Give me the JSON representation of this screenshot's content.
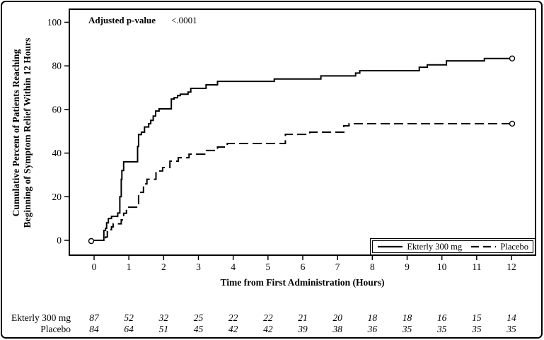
{
  "chart_data": {
    "type": "line",
    "subtype": "kaplan-meier-step",
    "title": "",
    "xlabel": "Time from First Administration (Hours)",
    "ylabel_line1": "Cumulative Percent of Patients Reaching",
    "ylabel_line2": "Beginning of Symptom Relief Within 12 Hours",
    "xlim": [
      0,
      12
    ],
    "ylim": [
      0,
      100
    ],
    "x_ticks": [
      0,
      1,
      2,
      3,
      4,
      5,
      6,
      7,
      8,
      9,
      10,
      11,
      12
    ],
    "y_ticks": [
      0,
      20,
      40,
      60,
      80,
      100
    ],
    "grid": "off",
    "annotation": {
      "label": "Adjusted p-value",
      "value": "<.0001"
    },
    "legend": {
      "position": "bottom-right-inside",
      "entries": [
        {
          "label": "Ekterly 300 mg",
          "style": "solid"
        },
        {
          "label": "Placebo",
          "style": "dashed"
        }
      ]
    },
    "series": [
      {
        "name": "Ekterly 300 mg",
        "style": "solid",
        "color": "#000000",
        "endpoint_marker": "open-circle",
        "end_value": 83.4,
        "points": [
          [
            0,
            0
          ],
          [
            0.28,
            0
          ],
          [
            0.28,
            4.5
          ],
          [
            0.33,
            4.5
          ],
          [
            0.33,
            5.5
          ],
          [
            0.36,
            5.5
          ],
          [
            0.36,
            8
          ],
          [
            0.41,
            8
          ],
          [
            0.41,
            10
          ],
          [
            0.5,
            10
          ],
          [
            0.5,
            11
          ],
          [
            0.68,
            11
          ],
          [
            0.68,
            12.5
          ],
          [
            0.74,
            12.5
          ],
          [
            0.74,
            20
          ],
          [
            0.78,
            20
          ],
          [
            0.78,
            28
          ],
          [
            0.8,
            28
          ],
          [
            0.8,
            32
          ],
          [
            0.85,
            32
          ],
          [
            0.85,
            36
          ],
          [
            1.25,
            36
          ],
          [
            1.25,
            43
          ],
          [
            1.28,
            43
          ],
          [
            1.28,
            48.5
          ],
          [
            1.36,
            48.5
          ],
          [
            1.36,
            49.6
          ],
          [
            1.45,
            49.6
          ],
          [
            1.45,
            52
          ],
          [
            1.57,
            52
          ],
          [
            1.57,
            53.5
          ],
          [
            1.63,
            53.5
          ],
          [
            1.63,
            55
          ],
          [
            1.7,
            55
          ],
          [
            1.7,
            57
          ],
          [
            1.77,
            57
          ],
          [
            1.77,
            59.3
          ],
          [
            1.87,
            59.3
          ],
          [
            1.87,
            60.3
          ],
          [
            2.22,
            60.3
          ],
          [
            2.22,
            64.8
          ],
          [
            2.3,
            64.8
          ],
          [
            2.3,
            65.4
          ],
          [
            2.4,
            65.4
          ],
          [
            2.4,
            66.4
          ],
          [
            2.48,
            66.4
          ],
          [
            2.48,
            67
          ],
          [
            2.7,
            67
          ],
          [
            2.7,
            68
          ],
          [
            2.78,
            68
          ],
          [
            2.78,
            69.7
          ],
          [
            3.22,
            69.7
          ],
          [
            3.22,
            71.3
          ],
          [
            3.55,
            71.3
          ],
          [
            3.55,
            72.9
          ],
          [
            5.18,
            72.9
          ],
          [
            5.18,
            74
          ],
          [
            6.52,
            74
          ],
          [
            6.52,
            75.4
          ],
          [
            7.52,
            75.4
          ],
          [
            7.52,
            76.7
          ],
          [
            7.64,
            76.7
          ],
          [
            7.64,
            77.8
          ],
          [
            9.35,
            77.8
          ],
          [
            9.35,
            79.4
          ],
          [
            9.58,
            79.4
          ],
          [
            9.58,
            80.5
          ],
          [
            10.13,
            80.5
          ],
          [
            10.13,
            82.3
          ],
          [
            11.22,
            82.3
          ],
          [
            11.22,
            83.4
          ],
          [
            12,
            83.4
          ]
        ]
      },
      {
        "name": "Placebo",
        "style": "dashed",
        "color": "#000000",
        "endpoint_marker": "open-circle",
        "end_value": 53.5,
        "points": [
          [
            0,
            0
          ],
          [
            0.33,
            0
          ],
          [
            0.33,
            1.5
          ],
          [
            0.38,
            1.5
          ],
          [
            0.38,
            4.9
          ],
          [
            0.5,
            4.9
          ],
          [
            0.5,
            6.2
          ],
          [
            0.55,
            6.2
          ],
          [
            0.55,
            7.6
          ],
          [
            0.78,
            7.6
          ],
          [
            0.78,
            9.4
          ],
          [
            0.85,
            9.4
          ],
          [
            0.85,
            12.4
          ],
          [
            0.93,
            12.4
          ],
          [
            0.93,
            15.2
          ],
          [
            1.28,
            15.2
          ],
          [
            1.28,
            22
          ],
          [
            1.42,
            22
          ],
          [
            1.42,
            25.9
          ],
          [
            1.52,
            25.9
          ],
          [
            1.52,
            28
          ],
          [
            1.78,
            28
          ],
          [
            1.78,
            31.8
          ],
          [
            1.97,
            31.8
          ],
          [
            1.97,
            33.4
          ],
          [
            2.18,
            33.4
          ],
          [
            2.18,
            36.3
          ],
          [
            2.42,
            36.3
          ],
          [
            2.42,
            37.9
          ],
          [
            2.73,
            37.9
          ],
          [
            2.73,
            39.5
          ],
          [
            3.18,
            39.5
          ],
          [
            3.18,
            41.2
          ],
          [
            3.55,
            41.2
          ],
          [
            3.55,
            42.8
          ],
          [
            3.83,
            42.8
          ],
          [
            3.83,
            44.4
          ],
          [
            5.5,
            44.4
          ],
          [
            5.5,
            48.6
          ],
          [
            6.2,
            48.6
          ],
          [
            6.2,
            49.6
          ],
          [
            7.18,
            49.6
          ],
          [
            7.18,
            52.5
          ],
          [
            7.33,
            52.5
          ],
          [
            7.33,
            53.5
          ],
          [
            12,
            53.5
          ]
        ]
      }
    ]
  },
  "risk_table": {
    "x_positions_hours": [
      0,
      1,
      2,
      3,
      4,
      5,
      6,
      7,
      8,
      9,
      10,
      11,
      12
    ],
    "rows": [
      {
        "label": "Ekterly 300 mg",
        "values": [
          87,
          52,
          32,
          25,
          22,
          22,
          21,
          20,
          18,
          18,
          16,
          15,
          14
        ]
      },
      {
        "label": "Placebo",
        "values": [
          84,
          64,
          51,
          45,
          42,
          42,
          39,
          38,
          36,
          35,
          35,
          35,
          35
        ]
      }
    ]
  },
  "colors": {
    "line": "#000000",
    "background": "#ffffff",
    "border": "#000000"
  }
}
